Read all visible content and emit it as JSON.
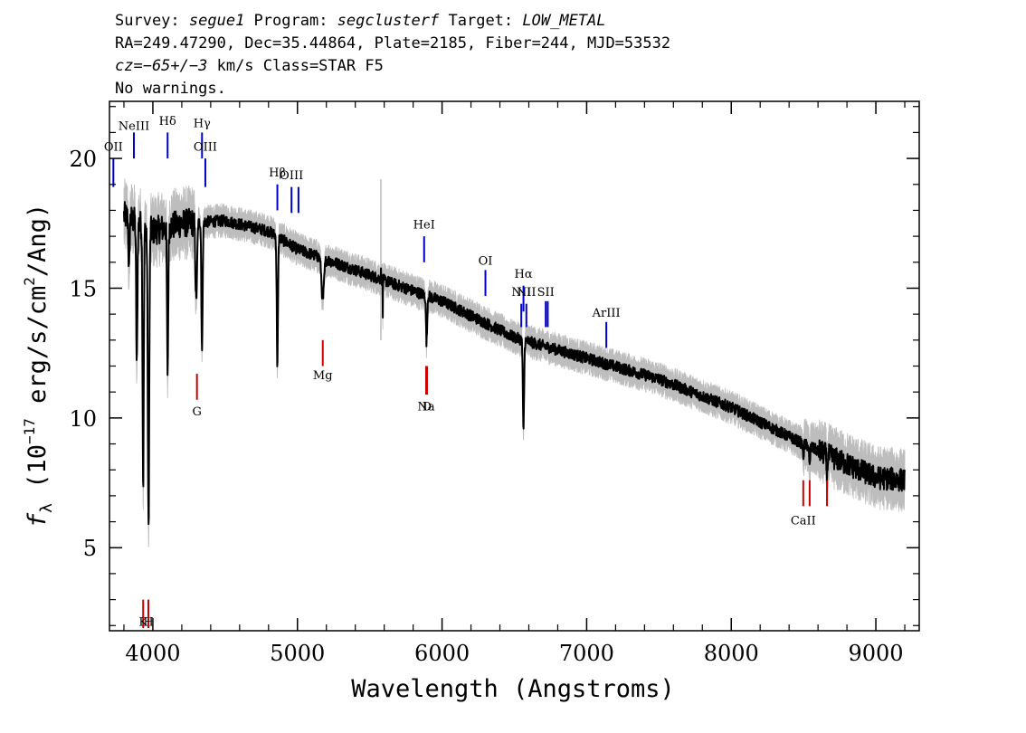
{
  "header": {
    "line1_a": "Survey: ",
    "line1_survey": "segue1",
    "line1_b": " Program: ",
    "line1_program": "segclusterf",
    "line1_c": " Target: ",
    "line1_target": "LOW_METAL",
    "line2": "RA=249.47290, Dec=35.44864, Plate=2185, Fiber=244, MJD=53532",
    "line3_cz": "cz=−65+/−3",
    "line3_rest": " km/s Class=STAR F5",
    "line4": "No warnings."
  },
  "chart_data": {
    "type": "line",
    "title": "",
    "xlabel": "Wavelength (Angstroms)",
    "ylabel_prefix": "f",
    "ylabel_sub": "λ",
    "ylabel_a": " (10",
    "ylabel_exp1": "−17",
    "ylabel_b": " erg/s/cm",
    "ylabel_exp2": "2",
    "ylabel_c": "/Ang)",
    "xlim": [
      3700,
      9300
    ],
    "ylim": [
      1.8,
      22.2
    ],
    "xticks": [
      4000,
      5000,
      6000,
      7000,
      8000,
      9000
    ],
    "xtick_labels": [
      "4000",
      "5000",
      "6000",
      "7000",
      "8000",
      "9000"
    ],
    "yticks": [
      5,
      10,
      15,
      20
    ],
    "ytick_labels": [
      "5",
      "10",
      "15",
      "20"
    ],
    "colors": {
      "flux": "#000000",
      "error_band": "#bdbdbd",
      "emission_lines": "#0000cc",
      "absorption_lines": "#cc0000"
    },
    "continuum": [
      [
        3800,
        17.8
      ],
      [
        4000,
        17.2
      ],
      [
        4200,
        17.5
      ],
      [
        4500,
        17.6
      ],
      [
        4800,
        17.2
      ],
      [
        5000,
        16.5
      ],
      [
        5300,
        15.9
      ],
      [
        5600,
        15.3
      ],
      [
        6000,
        14.5
      ],
      [
        6500,
        13.1
      ],
      [
        7000,
        12.3
      ],
      [
        7500,
        11.5
      ],
      [
        8000,
        10.4
      ],
      [
        8500,
        9.0
      ],
      [
        9000,
        7.7
      ],
      [
        9200,
        7.6
      ]
    ],
    "absorption_features": [
      {
        "x": 3835,
        "depth": 2.2,
        "width": 5
      },
      {
        "x": 3889,
        "depth": 5.5,
        "width": 6
      },
      {
        "x": 3933,
        "depth": 10.0,
        "width": 6
      },
      {
        "x": 3970,
        "depth": 11.5,
        "width": 7
      },
      {
        "x": 4102,
        "depth": 5.5,
        "width": 6
      },
      {
        "x": 4300,
        "depth": 3.0,
        "width": 8
      },
      {
        "x": 4340,
        "depth": 5.0,
        "width": 6
      },
      {
        "x": 4861,
        "depth": 5.0,
        "width": 6
      },
      {
        "x": 5175,
        "depth": 1.6,
        "width": 12
      },
      {
        "x": 5893,
        "depth": 1.8,
        "width": 6
      },
      {
        "x": 6563,
        "depth": 3.6,
        "width": 6
      },
      {
        "x": 8498,
        "depth": 0.5,
        "width": 5
      },
      {
        "x": 8542,
        "depth": 0.8,
        "width": 5
      },
      {
        "x": 8662,
        "depth": 0.7,
        "width": 5
      }
    ],
    "spikes": [
      {
        "x": 5577,
        "value": 15.6
      },
      {
        "x": 5590,
        "value": 13.8
      }
    ],
    "emission_lines": [
      {
        "label": "OII",
        "x": 3727,
        "label_y": 20.3,
        "y_top": 20.0,
        "y_bot": 18.9
      },
      {
        "label": "NeIII",
        "x": 3869,
        "label_y": 21.1,
        "y_top": 21.0,
        "y_bot": 20.0
      },
      {
        "label": "Hδ",
        "x": 4102,
        "label_y": 21.3,
        "y_top": 21.0,
        "y_bot": 20.0
      },
      {
        "label": "Hγ",
        "x": 4340,
        "label_y": 21.2,
        "y_top": 21.0,
        "y_bot": 20.0
      },
      {
        "label": "OIII",
        "x": 4363,
        "label_y": 20.3,
        "y_top": 20.0,
        "y_bot": 18.9
      },
      {
        "label": "Hβ",
        "x": 4861,
        "label_y": 19.3,
        "y_top": 19.0,
        "y_bot": 18.0
      },
      {
        "label": "OIII",
        "x": 4959,
        "label_y": 19.2,
        "y_top": 18.9,
        "y_bot": 17.9
      },
      {
        "label": "",
        "x": 5007,
        "y_top": 18.9,
        "y_bot": 17.9
      },
      {
        "label": "HeI",
        "x": 5876,
        "label_y": 17.3,
        "y_top": 17.0,
        "y_bot": 16.0
      },
      {
        "label": "OI",
        "x": 6300,
        "label_y": 15.9,
        "y_top": 15.7,
        "y_bot": 14.7
      },
      {
        "label": "NII",
        "x": 6548,
        "label_y": 14.7,
        "y_top": 14.4,
        "y_bot": 13.5
      },
      {
        "label": "Hα",
        "x": 6563,
        "label_y": 15.4,
        "y_top": 15.1,
        "y_bot": 14.1
      },
      {
        "label": "NII",
        "x": 6583,
        "label_y": 14.7,
        "y_top": 14.4,
        "y_bot": 13.5
      },
      {
        "label": "SII",
        "x": 6717,
        "label_y": 14.7,
        "y_top": 14.5,
        "y_bot": 13.5
      },
      {
        "label": "",
        "x": 6731,
        "y_top": 14.5,
        "y_bot": 13.5
      },
      {
        "label": "ArIII",
        "x": 7136,
        "label_y": 13.9,
        "y_top": 13.7,
        "y_bot": 12.7
      }
    ],
    "absorption_lines": [
      {
        "label": "K",
        "x": 3933,
        "label_y": 2.0,
        "y_top": 3.0,
        "y_bot": 1.9
      },
      {
        "label": "H",
        "x": 3969,
        "label_y": 2.0,
        "y_top": 3.0,
        "y_bot": 1.9
      },
      {
        "label": "G",
        "x": 4305,
        "label_y": 10.1,
        "y_top": 11.7,
        "y_bot": 10.7
      },
      {
        "label": "Mg",
        "x": 5175,
        "label_y": 11.5,
        "y_top": 13.0,
        "y_bot": 12.0
      },
      {
        "label": "Na",
        "x": 5890,
        "label_y": 10.3,
        "y_top": 12.0,
        "y_bot": 10.9
      },
      {
        "label": "D",
        "x": 5896,
        "label_y": 10.3,
        "y_top": 12.0,
        "y_bot": 10.9
      },
      {
        "label": "CaII",
        "x": 8498,
        "label_y": 5.9,
        "y_top": 7.6,
        "y_bot": 6.6
      },
      {
        "label": "",
        "x": 8542,
        "y_top": 7.6,
        "y_bot": 6.6
      },
      {
        "label": "",
        "x": 8662,
        "y_top": 7.6,
        "y_bot": 6.6
      }
    ]
  }
}
